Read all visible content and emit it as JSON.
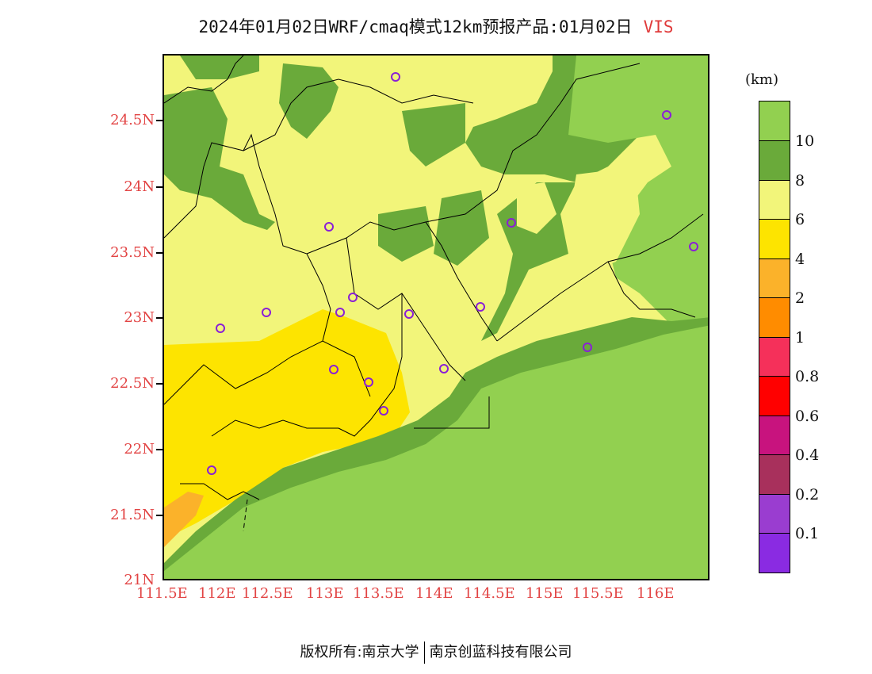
{
  "title": {
    "main": "2024年01月02日WRF/cmaq模式12km预报产品:01月02日",
    "variable": "VIS"
  },
  "unit": "(km)",
  "footer": {
    "left": "版权所有:南京大学",
    "right": "南京创蓝科技有限公司"
  },
  "axes": {
    "y_labels": [
      "24.5N",
      "24N",
      "23.5N",
      "23N",
      "22.5N",
      "22N",
      "21.5N",
      "21N"
    ],
    "x_labels": [
      "111.5E",
      "112E",
      "112.5E",
      "113E",
      "113.5E",
      "114E",
      "114.5E",
      "115E",
      "115.5E",
      "116E"
    ]
  },
  "legend": {
    "labels": [
      "10",
      "8",
      "6",
      "4",
      "2",
      "1",
      "0.8",
      "0.6",
      "0.4",
      "0.2",
      "0.1"
    ],
    "colors": [
      "#92d050",
      "#6aaa3a",
      "#f2f57a",
      "#fde400",
      "#fbb22a",
      "#ff8c00",
      "#f5305a",
      "#ff0000",
      "#c8137e",
      "#a8305c",
      "#9a3dd0",
      "#8a2be2"
    ]
  },
  "colors": {
    "sea": "#92d050",
    "coast_band": "#6aaa3a",
    "land": "#f2f57a",
    "haze": "#fde400",
    "orange": "#fbb22a",
    "station": "#8a1fd6",
    "axis_text": "#e24444"
  }
}
